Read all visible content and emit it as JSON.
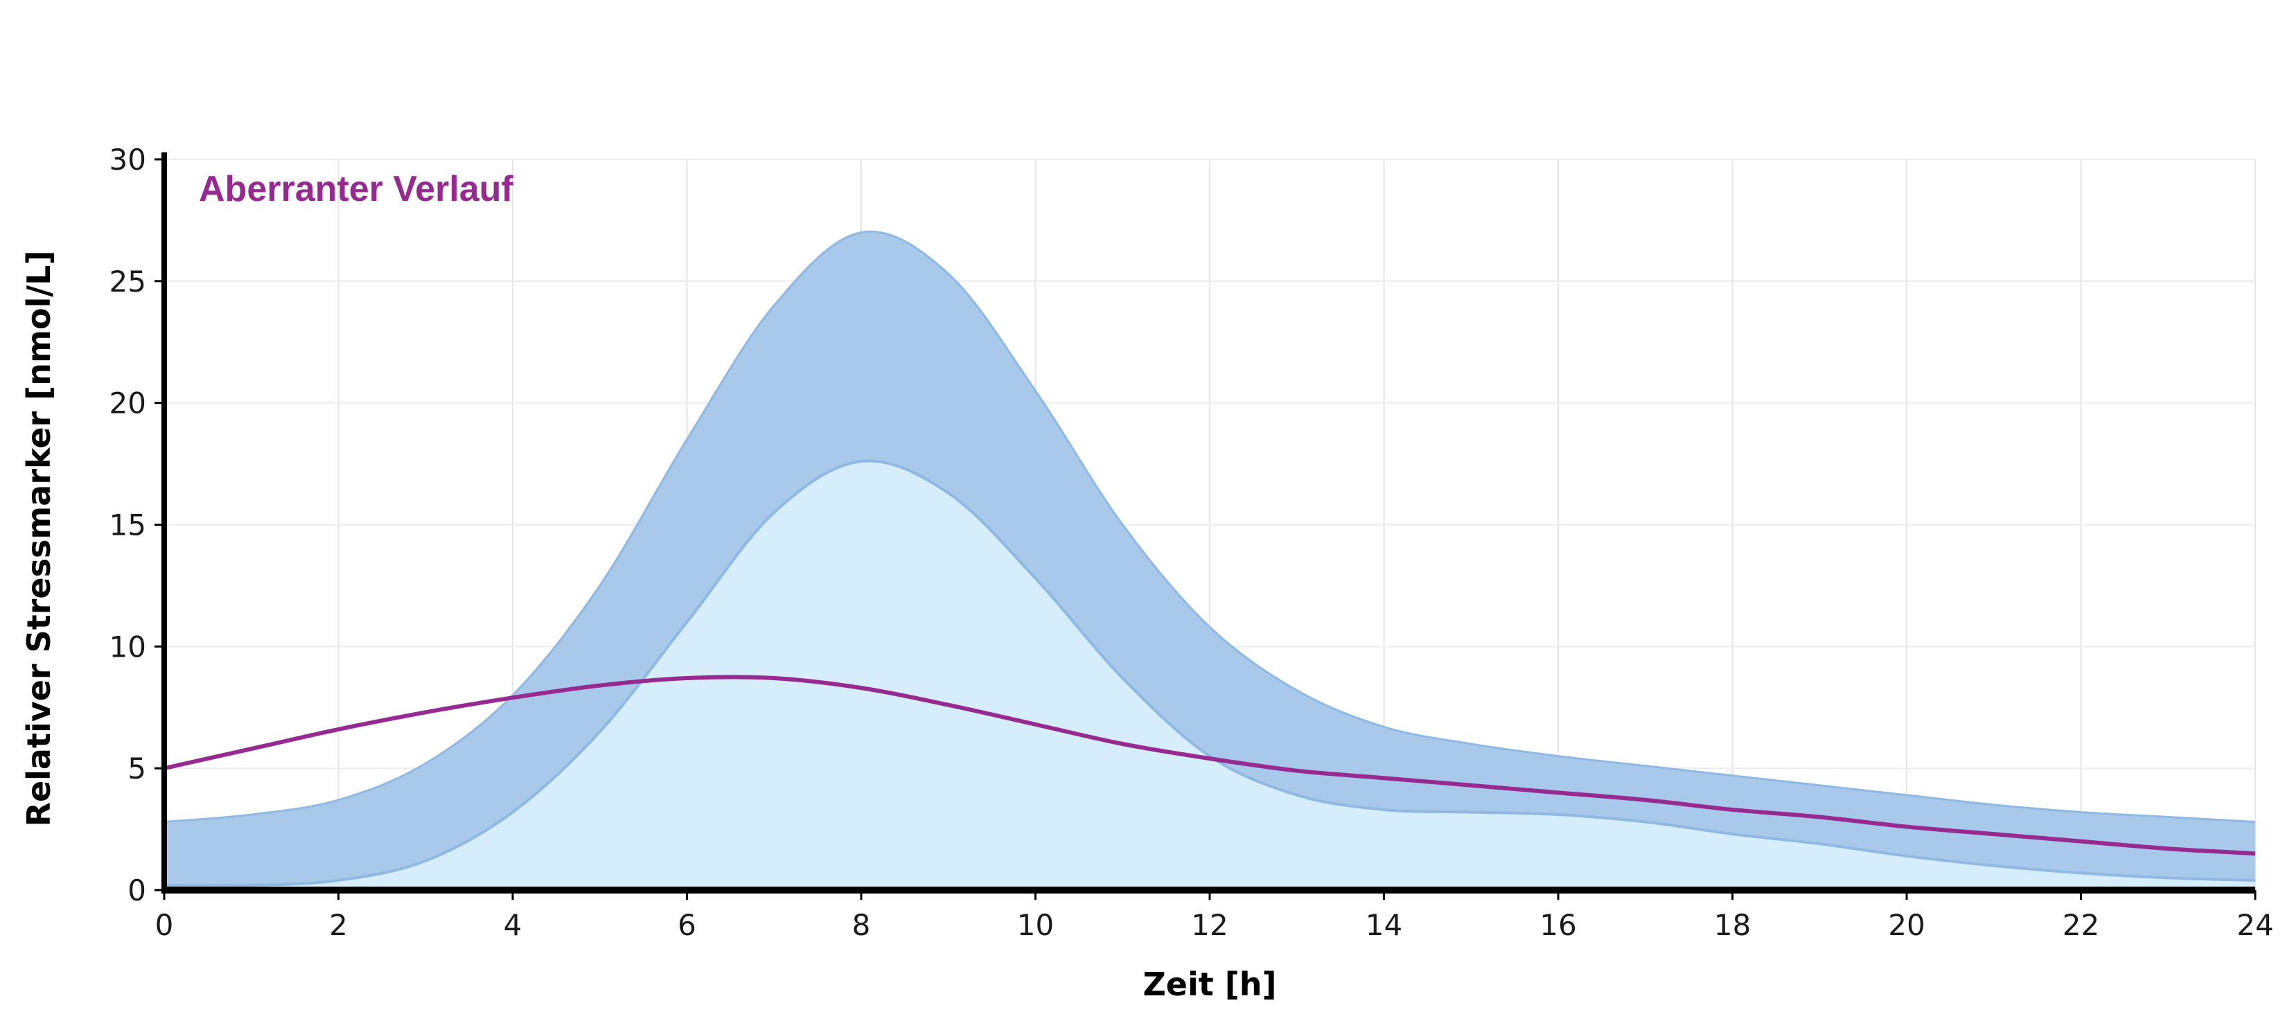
{
  "chart_data": {
    "type": "area",
    "xlabel": "Zeit [h]",
    "ylabel": "Relativer Stressmarker [nmol/L]",
    "xlim": [
      0,
      24
    ],
    "ylim": [
      0,
      30
    ],
    "x_ticks": [
      0,
      2,
      4,
      6,
      8,
      10,
      12,
      14,
      16,
      18,
      20,
      22,
      24
    ],
    "y_ticks": [
      0,
      5,
      10,
      15,
      20,
      25,
      30
    ],
    "grid": true,
    "annotation": "Aberranter Verlauf",
    "x": [
      0,
      1,
      2,
      3,
      4,
      5,
      6,
      7,
      8,
      9,
      10,
      11,
      12,
      13,
      14,
      15,
      16,
      17,
      18,
      19,
      20,
      21,
      22,
      23,
      24
    ],
    "band": {
      "upper": [
        2.8,
        3.1,
        3.7,
        5.2,
        8.0,
        12.5,
        18.5,
        24.0,
        27.0,
        25.3,
        20.5,
        15.0,
        10.8,
        8.2,
        6.7,
        6.0,
        5.5,
        5.1,
        4.7,
        4.3,
        3.9,
        3.5,
        3.2,
        3.0,
        2.8
      ],
      "lower": [
        0.2,
        0.2,
        0.4,
        1.2,
        3.2,
        6.5,
        11.0,
        15.5,
        17.6,
        16.3,
        12.8,
        8.7,
        5.5,
        3.9,
        3.3,
        3.2,
        3.1,
        2.8,
        2.3,
        1.9,
        1.4,
        1.0,
        0.7,
        0.5,
        0.4
      ],
      "fill_color": "#a8c9ea",
      "edge_color": "#8fb8e3"
    },
    "baseline_fill_color": "#d6eefc",
    "series": [
      {
        "values": [
          5.0,
          5.8,
          6.6,
          7.3,
          7.9,
          8.4,
          8.7,
          8.7,
          8.3,
          7.6,
          6.8,
          6.0,
          5.4,
          4.9,
          4.6,
          4.3,
          4.0,
          3.7,
          3.3,
          3.0,
          2.6,
          2.3,
          2.0,
          1.7,
          1.5
        ],
        "color": "#962a90"
      }
    ]
  }
}
